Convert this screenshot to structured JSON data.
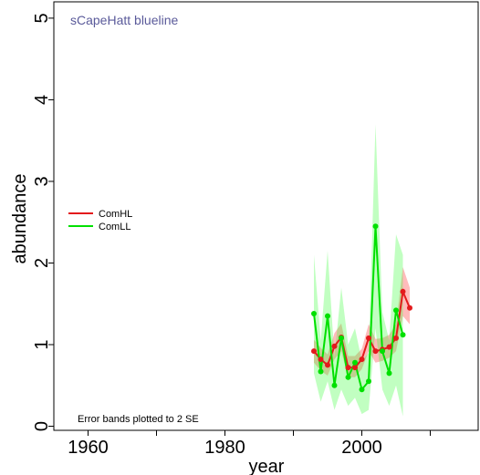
{
  "chart_data": {
    "type": "line",
    "title": "sCapeHatt blueline",
    "xlabel": "year",
    "ylabel": "abundance",
    "xlim": [
      1955,
      2017
    ],
    "ylim": [
      -0.05,
      5.2
    ],
    "xticks": [
      1960,
      1970,
      1980,
      1990,
      2000,
      2010
    ],
    "xtick_labels": [
      "1960",
      "",
      "1980",
      "",
      "2000",
      ""
    ],
    "yticks": [
      0,
      1,
      2,
      3,
      4,
      5
    ],
    "ytick_labels": [
      "0",
      "1",
      "2",
      "3",
      "4",
      "5"
    ],
    "legend_position": "left",
    "note": "Error bands plotted to 2 SE",
    "series": [
      {
        "name": "ComHL",
        "color": "#e31a1c",
        "band_color": "#ff3b3b",
        "x": [
          1993,
          1994,
          1995,
          1996,
          1997,
          1998,
          1999,
          2000,
          2001,
          2002,
          2003,
          2004,
          2005,
          2006,
          2007
        ],
        "y": [
          0.92,
          0.82,
          0.75,
          0.98,
          1.09,
          0.72,
          0.72,
          0.82,
          1.08,
          0.92,
          0.94,
          0.97,
          1.08,
          1.65,
          1.45
        ],
        "lower": [
          0.78,
          0.68,
          0.62,
          0.82,
          0.92,
          0.6,
          0.6,
          0.7,
          0.92,
          0.78,
          0.8,
          0.84,
          0.92,
          1.35,
          1.25
        ],
        "upper": [
          1.06,
          0.96,
          0.88,
          1.14,
          1.26,
          0.86,
          0.86,
          0.95,
          1.25,
          1.07,
          1.08,
          1.12,
          1.25,
          1.95,
          1.7
        ]
      },
      {
        "name": "ComLL",
        "color": "#00e000",
        "band_color": "#33ff33",
        "x": [
          1993,
          1994,
          1995,
          1996,
          1997,
          1998,
          1999,
          2000,
          2001,
          2002,
          2003,
          2004,
          2005,
          2006
        ],
        "y": [
          1.38,
          0.67,
          1.35,
          0.5,
          1.08,
          0.6,
          0.78,
          0.45,
          0.55,
          2.45,
          0.92,
          0.65,
          1.42,
          1.12
        ],
        "lower": [
          0.65,
          0.3,
          0.55,
          0.2,
          0.45,
          0.25,
          0.35,
          0.15,
          0.2,
          1.2,
          0.45,
          0.25,
          0.5,
          0.12
        ],
        "upper": [
          2.1,
          1.05,
          2.15,
          0.85,
          1.7,
          1.0,
          1.2,
          0.8,
          0.9,
          3.7,
          1.4,
          1.05,
          2.35,
          2.1
        ]
      }
    ]
  }
}
